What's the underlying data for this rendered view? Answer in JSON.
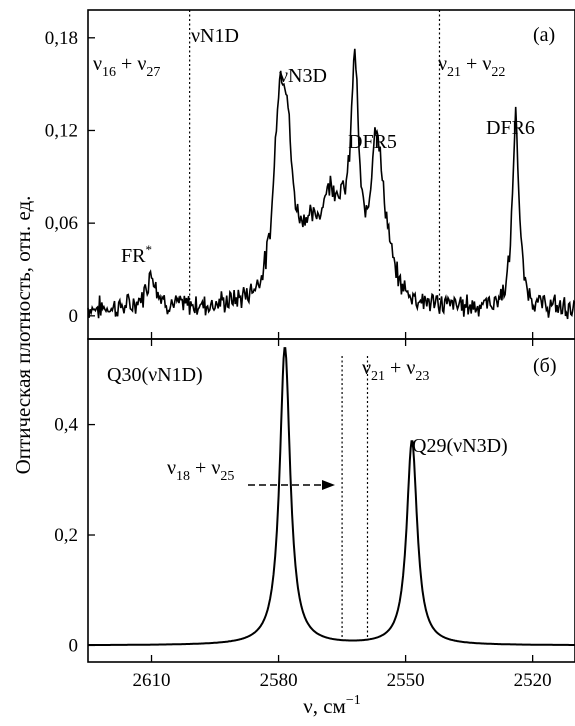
{
  "chart_data": [
    {
      "panel": "(a)",
      "type": "line",
      "xlim": [
        2625,
        2510
      ],
      "ylim": [
        -0.015,
        0.198
      ],
      "yticks": [
        {
          "v": 0,
          "label": "0"
        },
        {
          "v": 0.06,
          "label": "0,06"
        },
        {
          "v": 0.12,
          "label": "0,12"
        },
        {
          "v": 0.18,
          "label": "0,18"
        }
      ],
      "peaks": [
        {
          "x": 2610,
          "height": 0.022,
          "width": 1.5
        },
        {
          "x": 2579,
          "height": 0.09,
          "width": 1.8
        },
        {
          "x": 2580.2,
          "height": 0.055,
          "width": 1.2
        },
        {
          "x": 2577.8,
          "height": 0.04,
          "width": 1.2
        },
        {
          "x": 2573,
          "height": 0.035,
          "width": 4
        },
        {
          "x": 2568,
          "height": 0.045,
          "width": 2.5
        },
        {
          "x": 2565,
          "height": 0.03,
          "width": 2.5
        },
        {
          "x": 2562,
          "height": 0.132,
          "width": 1.1
        },
        {
          "x": 2557,
          "height": 0.092,
          "width": 1.5
        },
        {
          "x": 2555,
          "height": 0.03,
          "width": 2.0
        },
        {
          "x": 2524,
          "height": 0.125,
          "width": 0.9
        }
      ],
      "baseline": 0.004,
      "noise": 0.006,
      "annotations": {
        "panel": "(a)",
        "fr": "FR",
        "fr_sup": "*",
        "vN1D": "νN1D",
        "vN3D": "νN3D",
        "dfr5": "DFR5",
        "dfr6": "DFR6",
        "combo_left": {
          "nu1": "ν",
          "s1": "16",
          "plus": " + ",
          "nu2": "ν",
          "s2": "27"
        },
        "combo_right": {
          "nu1": "ν",
          "s1": "21",
          "plus": " + ",
          "nu2": "ν",
          "s2": "22"
        }
      },
      "vlines": [
        2601,
        2542
      ]
    },
    {
      "panel": "(б)",
      "type": "line",
      "xlim": [
        2625,
        2510
      ],
      "ylim": [
        -0.03,
        0.555
      ],
      "yticks": [
        {
          "v": 0,
          "label": "0"
        },
        {
          "v": 0.2,
          "label": "0,2"
        },
        {
          "v": 0.4,
          "label": "0,4"
        }
      ],
      "peaks": [
        {
          "x": 2578.5,
          "height": 0.54,
          "width": 1.5
        },
        {
          "x": 2548.5,
          "height": 0.37,
          "width": 1.5
        }
      ],
      "baseline": 0.0,
      "annotations": {
        "panel": "(б)",
        "q30": "Q30(νN1D)",
        "q29": "Q29(νN3D)",
        "combo_arrow": {
          "nu1": "ν",
          "s1": "18",
          "plus": " + ",
          "nu2": "ν",
          "s2": "25"
        },
        "combo_right": {
          "nu1": "ν",
          "s1": "21",
          "plus": " + ",
          "nu2": "ν",
          "s2": "23"
        }
      },
      "vlines": [
        2565,
        2559
      ]
    }
  ],
  "xticks": [
    {
      "v": 2610,
      "label": "2610"
    },
    {
      "v": 2580,
      "label": "2580"
    },
    {
      "v": 2550,
      "label": "2550"
    },
    {
      "v": 2520,
      "label": "2520"
    }
  ],
  "xlabel": {
    "main": "ν, см",
    "sup": "−1"
  },
  "ylabel": "Оптическая плотность, отн. ед."
}
